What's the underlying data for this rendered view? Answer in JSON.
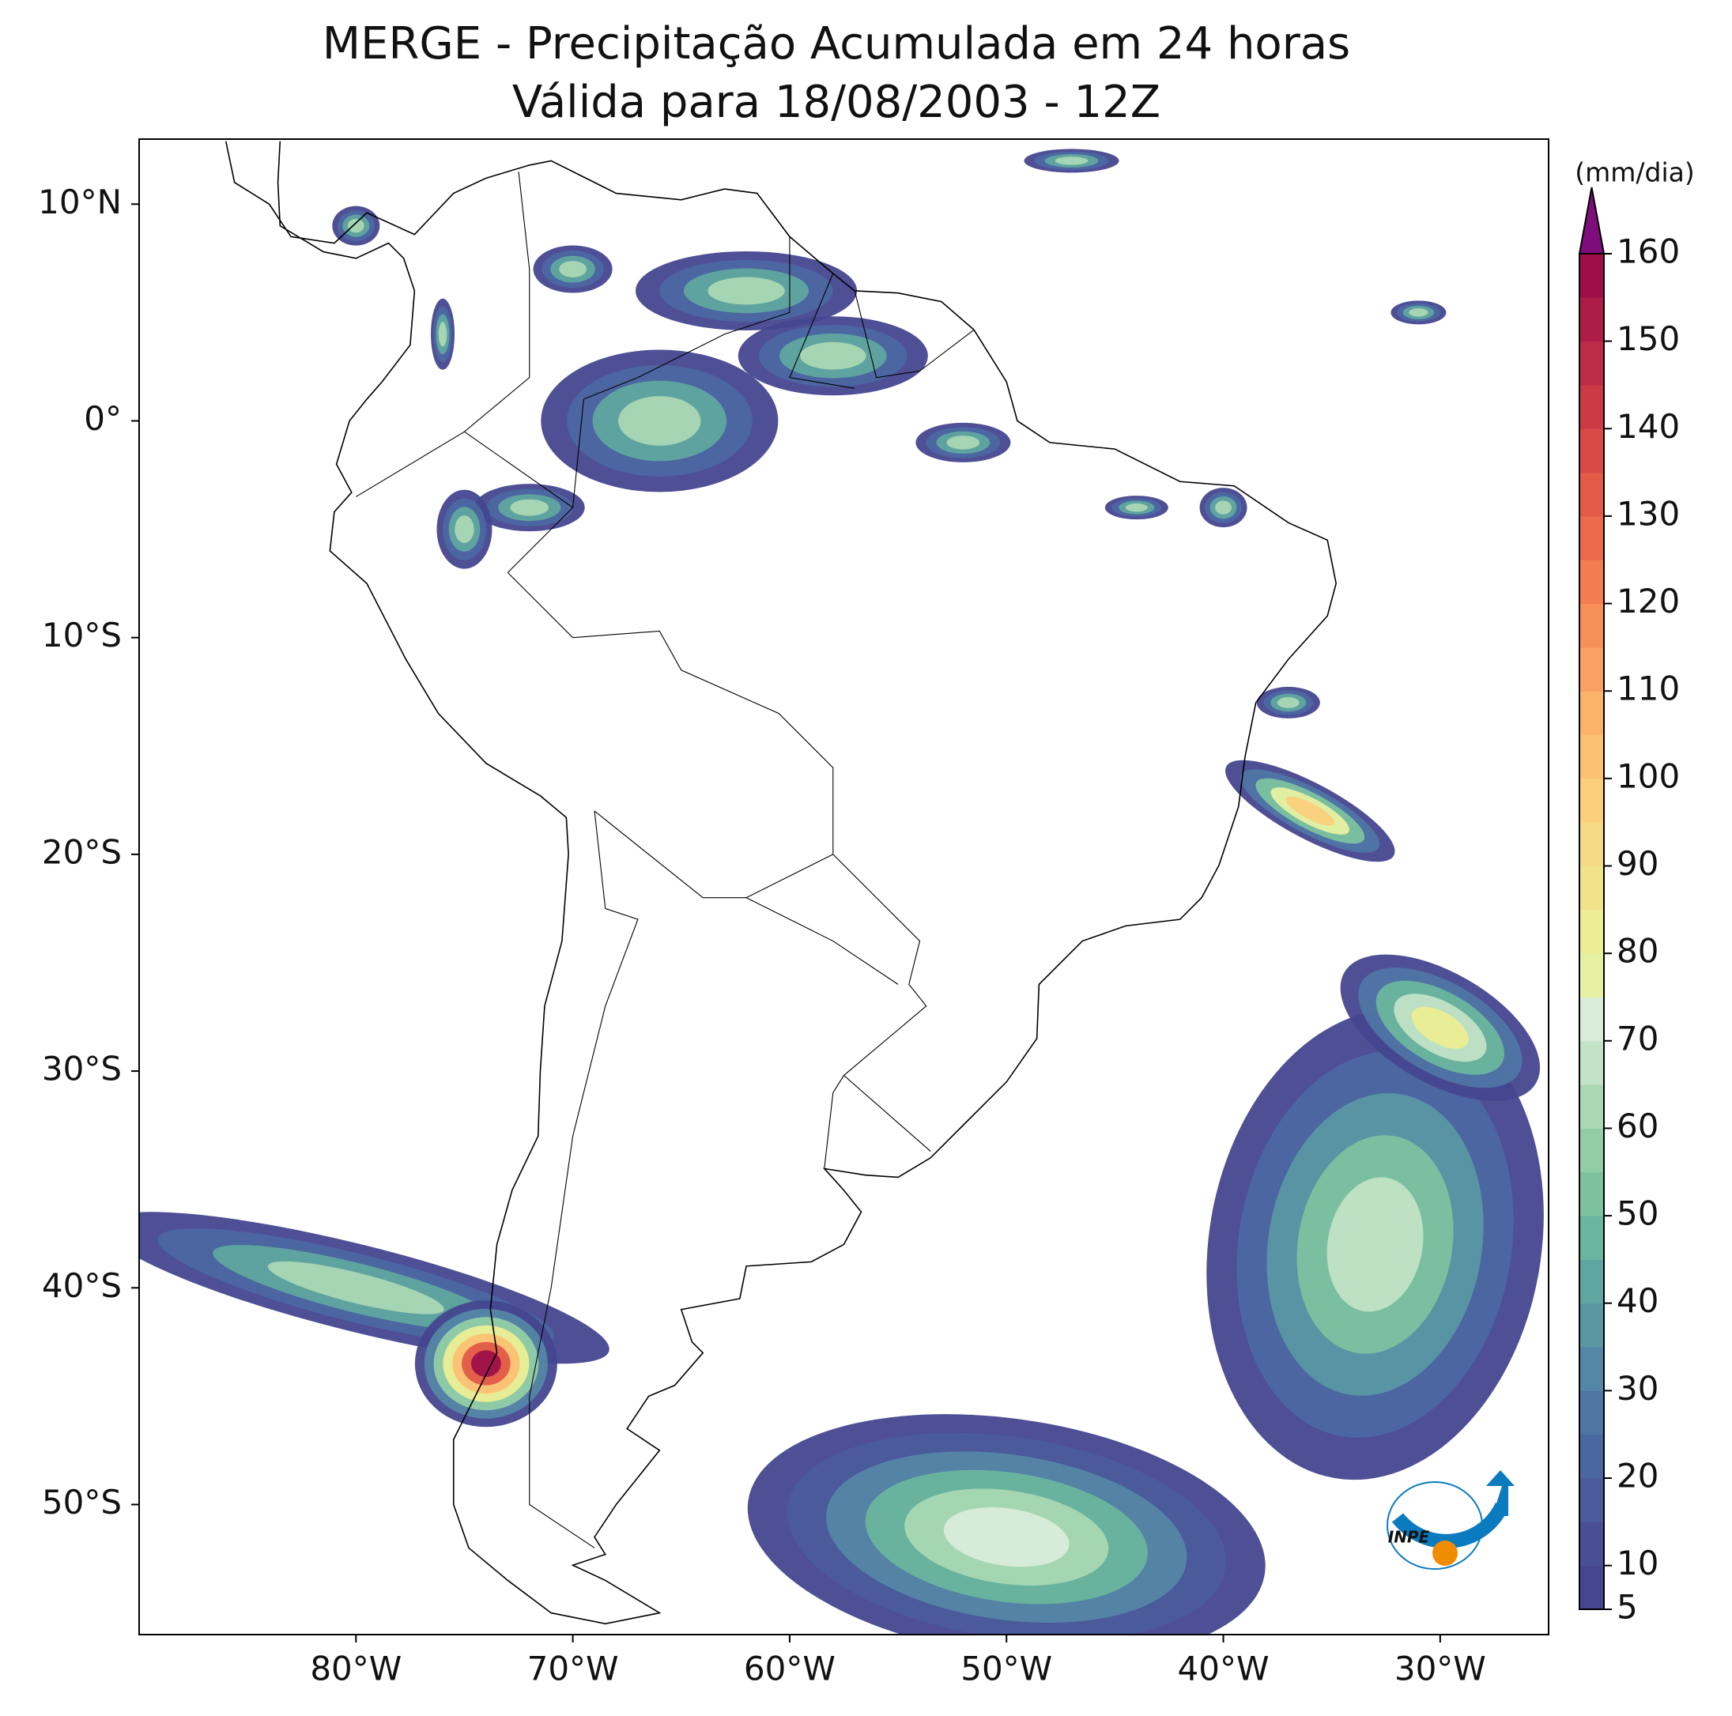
{
  "chart_data": {
    "type": "map",
    "title": "MERGE - Precipitação Acumulada em 24 horas",
    "subtitle": "Válida para 18/08/2003 - 12Z",
    "xlim": [
      -90,
      -25
    ],
    "ylim": [
      -56,
      13
    ],
    "xticks": [
      {
        "value": -80,
        "label": "80°W"
      },
      {
        "value": -70,
        "label": "70°W"
      },
      {
        "value": -60,
        "label": "60°W"
      },
      {
        "value": -50,
        "label": "50°W"
      },
      {
        "value": -40,
        "label": "40°W"
      },
      {
        "value": -30,
        "label": "30°W"
      }
    ],
    "yticks": [
      {
        "value": 10,
        "label": "10°N"
      },
      {
        "value": 0,
        "label": "0°"
      },
      {
        "value": -10,
        "label": "10°S"
      },
      {
        "value": -20,
        "label": "20°S"
      },
      {
        "value": -30,
        "label": "30°S"
      },
      {
        "value": -40,
        "label": "40°S"
      },
      {
        "value": -50,
        "label": "50°S"
      }
    ],
    "colorbar": {
      "label": "(mm/dia)",
      "lim": [
        5,
        160
      ],
      "ticks": [
        5,
        10,
        20,
        30,
        40,
        50,
        60,
        70,
        80,
        90,
        100,
        110,
        120,
        130,
        140,
        150,
        160
      ],
      "colors": [
        "#45468f",
        "#484f95",
        "#4a5b9b",
        "#4b67a1",
        "#4f75a5",
        "#5486a7",
        "#5a97a5",
        "#60a6a0",
        "#6ab59d",
        "#7cc29f",
        "#92cda6",
        "#a9d8b3",
        "#c2e3c6",
        "#d8ecda",
        "#e6f1a2",
        "#ebee94",
        "#f0e38a",
        "#f6d985",
        "#fbcf7c",
        "#fcc173",
        "#fbb26a",
        "#f9a062",
        "#f78f58",
        "#f37d50",
        "#ec6a4a",
        "#e35a47",
        "#d84a46",
        "#cc3b45",
        "#bd2c46",
        "#ad1d48",
        "#9e0f4a"
      ],
      "over_color": "#7e0c7a"
    },
    "logo": "INPE"
  }
}
